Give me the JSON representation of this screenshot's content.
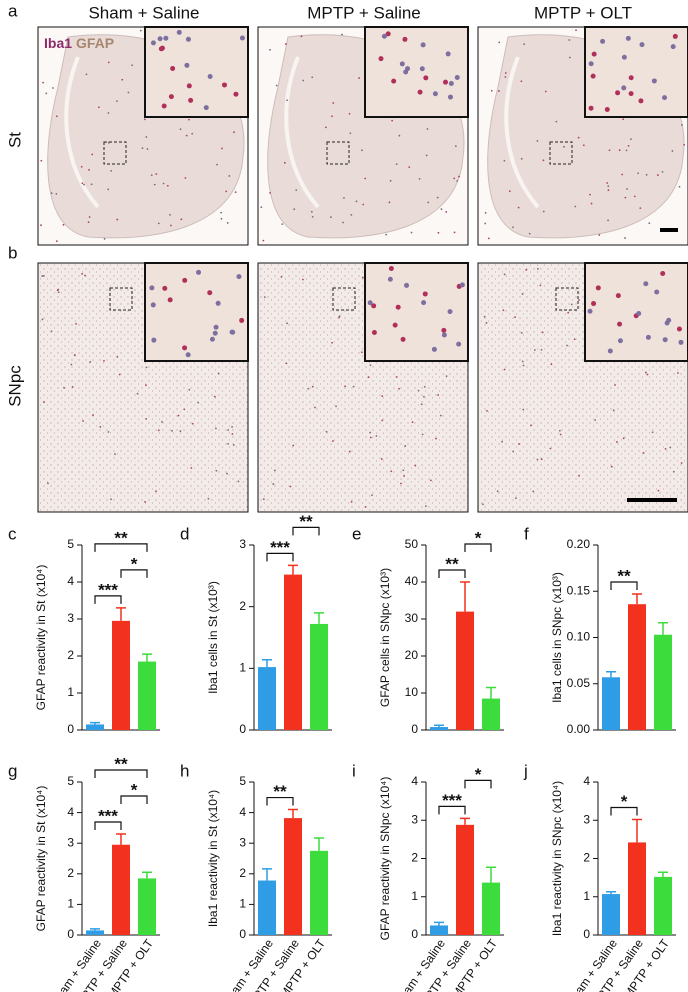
{
  "figure": {
    "columns": [
      "Sham + Saline",
      "MPTP + Saline",
      "MPTP + OLT"
    ],
    "rows": [
      "St",
      "SNpc"
    ],
    "panel_letters": [
      "a",
      "b"
    ],
    "stain_legend": [
      "Iba1",
      "GFAP"
    ]
  },
  "chart_data": [
    {
      "type": "bar",
      "panel": "c",
      "ylabel": "GFAP reactivity in St (x10⁴)",
      "values": [
        0.15,
        2.95,
        1.85
      ],
      "errors": [
        0.05,
        0.35,
        0.2
      ],
      "colors": [
        "#2f9de6",
        "#f2321e",
        "#3ddc3d"
      ],
      "ylim": [
        0,
        5
      ],
      "yticks": [
        0,
        1,
        2,
        3,
        4,
        5
      ],
      "brackets": [
        {
          "label": "***",
          "pair": [
            0,
            1
          ]
        },
        {
          "label": "*",
          "pair": [
            1,
            2
          ]
        },
        {
          "label": "**",
          "pair": [
            0,
            2
          ]
        }
      ]
    },
    {
      "type": "bar",
      "panel": "d",
      "ylabel": "Iba1 cells in St (x10³)",
      "values": [
        1.02,
        2.52,
        1.72
      ],
      "errors": [
        0.12,
        0.15,
        0.18
      ],
      "colors": [
        "#2f9de6",
        "#f2321e",
        "#3ddc3d"
      ],
      "ylim": [
        0,
        3
      ],
      "yticks": [
        0,
        1,
        2,
        3
      ],
      "brackets": [
        {
          "label": "***",
          "pair": [
            0,
            1
          ]
        },
        {
          "label": "**",
          "pair": [
            1,
            2
          ]
        }
      ]
    },
    {
      "type": "bar",
      "panel": "e",
      "ylabel": "GFAP cells in SNpc (x10³)",
      "values": [
        0.8,
        32,
        8.5
      ],
      "errors": [
        0.5,
        8,
        3
      ],
      "colors": [
        "#2f9de6",
        "#f2321e",
        "#3ddc3d"
      ],
      "ylim": [
        0,
        50
      ],
      "yticks": [
        0,
        10,
        20,
        30,
        40,
        50
      ],
      "brackets": [
        {
          "label": "**",
          "pair": [
            0,
            1
          ]
        },
        {
          "label": "*",
          "pair": [
            1,
            2
          ]
        }
      ]
    },
    {
      "type": "bar",
      "panel": "f",
      "ylabel": "Iba1 cells in SNpc (x10³)",
      "values": [
        0.057,
        0.136,
        0.103
      ],
      "errors": [
        0.006,
        0.011,
        0.013
      ],
      "colors": [
        "#2f9de6",
        "#f2321e",
        "#3ddc3d"
      ],
      "ylim": [
        0,
        0.2
      ],
      "yticks": [
        {
          "value": 0,
          "label": "0.00"
        },
        {
          "value": 0.05,
          "label": "0.05"
        },
        {
          "value": 0.1,
          "label": "0.10"
        },
        {
          "value": 0.15,
          "label": "0.15"
        },
        {
          "value": 0.2,
          "label": "0.20"
        }
      ],
      "brackets": [
        {
          "label": "**",
          "pair": [
            0,
            1
          ]
        }
      ]
    },
    {
      "type": "bar",
      "panel": "g",
      "ylabel": "GFAP reactivity in St (x10⁴)",
      "categories": [
        "Sham + Saline",
        "MPTP + Saline",
        "MPTP + OLT"
      ],
      "values": [
        0.15,
        2.95,
        1.85
      ],
      "errors": [
        0.05,
        0.35,
        0.2
      ],
      "colors": [
        "#2f9de6",
        "#f2321e",
        "#3ddc3d"
      ],
      "ylim": [
        0,
        5
      ],
      "yticks": [
        0,
        1,
        2,
        3,
        4,
        5
      ],
      "brackets": [
        {
          "label": "***",
          "pair": [
            0,
            1
          ]
        },
        {
          "label": "*",
          "pair": [
            1,
            2
          ]
        },
        {
          "label": "**",
          "pair": [
            0,
            2
          ]
        }
      ]
    },
    {
      "type": "bar",
      "panel": "h",
      "ylabel": "Iba1 reactivity in St (x10⁴)",
      "categories": [
        "Sham + Saline",
        "MPTP + Saline",
        "MPTP + OLT"
      ],
      "values": [
        1.78,
        3.82,
        2.75
      ],
      "errors": [
        0.38,
        0.28,
        0.42
      ],
      "colors": [
        "#2f9de6",
        "#f2321e",
        "#3ddc3d"
      ],
      "ylim": [
        0,
        5
      ],
      "yticks": [
        0,
        1,
        2,
        3,
        4,
        5
      ],
      "brackets": [
        {
          "label": "**",
          "pair": [
            0,
            1
          ]
        }
      ]
    },
    {
      "type": "bar",
      "panel": "i",
      "ylabel": "GFAP reactivity in SNpc (x10⁴)",
      "categories": [
        "Sham + Saline",
        "MPTP + Saline",
        "MPTP + OLT"
      ],
      "values": [
        0.25,
        2.88,
        1.37
      ],
      "errors": [
        0.08,
        0.17,
        0.4
      ],
      "colors": [
        "#2f9de6",
        "#f2321e",
        "#3ddc3d"
      ],
      "ylim": [
        0,
        4
      ],
      "yticks": [
        0,
        1,
        2,
        3,
        4
      ],
      "brackets": [
        {
          "label": "***",
          "pair": [
            0,
            1
          ]
        },
        {
          "label": "*",
          "pair": [
            1,
            2
          ]
        }
      ]
    },
    {
      "type": "bar",
      "panel": "j",
      "ylabel": "Iba1 reactivity in SNpc (x10⁴)",
      "categories": [
        "Sham + Saline",
        "MPTP + Saline",
        "MPTP + OLT"
      ],
      "values": [
        1.07,
        2.42,
        1.52
      ],
      "errors": [
        0.06,
        0.6,
        0.12
      ],
      "colors": [
        "#2f9de6",
        "#f2321e",
        "#3ddc3d"
      ],
      "ylim": [
        0,
        4
      ],
      "yticks": [
        0,
        1,
        2,
        3,
        4
      ],
      "brackets": [
        {
          "label": "*",
          "pair": [
            0,
            1
          ]
        }
      ]
    }
  ]
}
